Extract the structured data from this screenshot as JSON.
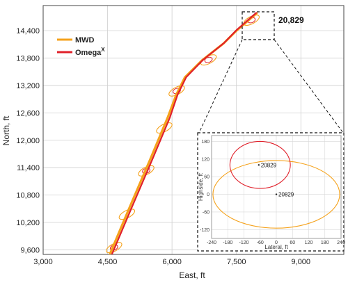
{
  "colors": {
    "mwd": "#F5A21B",
    "omega": "#E0202A",
    "grid": "#cfcfcf",
    "inset_grid": "#d8d8d8"
  },
  "chart_data": [
    {
      "type": "line",
      "title": "",
      "xlabel": "East, ft",
      "ylabel": "North, ft",
      "xlim": [
        3000,
        10000
      ],
      "ylim": [
        9500,
        14950
      ],
      "x_ticks": [
        "3,000",
        "4,500",
        "6,000",
        "7,500",
        "9,000"
      ],
      "x_tick_values": [
        3000,
        4500,
        6000,
        7500,
        9000
      ],
      "y_ticks": [
        "9,600",
        "10,200",
        "10,800",
        "11,400",
        "12,000",
        "12,600",
        "13,200",
        "13,800",
        "14,400"
      ],
      "y_tick_values": [
        9600,
        10200,
        10800,
        11400,
        12000,
        12600,
        13200,
        13800,
        14400
      ],
      "grid": true,
      "legend": "top-left",
      "series": [
        {
          "name": "MWD",
          "color": "#F5A21B",
          "x": [
            4550,
            5000,
            5500,
            5900,
            6100,
            6300,
            6700,
            7200,
            7500,
            7970
          ],
          "y": [
            9500,
            10500,
            11600,
            12500,
            13000,
            13380,
            13750,
            14120,
            14400,
            14780
          ]
        },
        {
          "name": "Omega",
          "name_superscript": "X",
          "color": "#E0202A",
          "x": [
            4600,
            5050,
            5550,
            5950,
            6130,
            6330,
            6720,
            7210,
            7510,
            7960
          ],
          "y": [
            9500,
            10500,
            11600,
            12500,
            13000,
            13380,
            13760,
            14130,
            14420,
            14790
          ]
        }
      ],
      "uncertainty_ellipses": [
        {
          "series": "MWD",
          "x": 4650,
          "y": 9650,
          "rx": 200,
          "ry": 80,
          "angle_deg": 28
        },
        {
          "series": "MWD",
          "x": 4950,
          "y": 10380,
          "rx": 200,
          "ry": 80,
          "angle_deg": 28
        },
        {
          "series": "MWD",
          "x": 5400,
          "y": 11330,
          "rx": 200,
          "ry": 80,
          "angle_deg": 28
        },
        {
          "series": "MWD",
          "x": 5820,
          "y": 12270,
          "rx": 200,
          "ry": 80,
          "angle_deg": 28
        },
        {
          "series": "MWD",
          "x": 6110,
          "y": 13080,
          "rx": 200,
          "ry": 80,
          "angle_deg": 28
        },
        {
          "series": "MWD",
          "x": 6850,
          "y": 13760,
          "rx": 200,
          "ry": 80,
          "angle_deg": 28
        },
        {
          "series": "MWD",
          "x": 7850,
          "y": 14630,
          "rx": 200,
          "ry": 80,
          "angle_deg": 28
        },
        {
          "series": "Omega",
          "x": 4650,
          "y": 9650,
          "rx": 90,
          "ry": 55,
          "angle_deg": 20
        },
        {
          "series": "Omega",
          "x": 5400,
          "y": 11330,
          "rx": 90,
          "ry": 55,
          "angle_deg": 20
        },
        {
          "series": "Omega",
          "x": 6110,
          "y": 13080,
          "rx": 90,
          "ry": 55,
          "angle_deg": 20
        },
        {
          "series": "Omega",
          "x": 6850,
          "y": 13760,
          "rx": 90,
          "ry": 55,
          "angle_deg": 20
        },
        {
          "series": "Omega",
          "x": 7850,
          "y": 14630,
          "rx": 90,
          "ry": 55,
          "angle_deg": 20
        }
      ],
      "annotations": [
        {
          "text": "20,829",
          "x": 7970,
          "y": 14780
        }
      ]
    },
    {
      "type": "scatter",
      "title": "",
      "xlabel": "Lateral, ft",
      "ylabel": "Highside, ft",
      "xlim": [
        -240,
        240
      ],
      "ylim": [
        -150,
        200
      ],
      "x_ticks": [
        "-240",
        "-180",
        "-120",
        "-60",
        "0",
        "60",
        "120",
        "180",
        "240"
      ],
      "x_tick_values": [
        -240,
        -180,
        -120,
        -60,
        0,
        60,
        120,
        180,
        240
      ],
      "y_ticks": [
        "180",
        "120",
        "60",
        "0",
        "-60",
        "-120"
      ],
      "y_tick_values": [
        180,
        120,
        60,
        0,
        -60,
        -120
      ],
      "grid": true,
      "ellipses": [
        {
          "series": "MWD",
          "cx": 0,
          "cy": 0,
          "rx": 235,
          "ry": 115
        },
        {
          "series": "Omega",
          "cx": -60,
          "cy": 100,
          "rx": 112,
          "ry": 80
        }
      ],
      "points": [
        {
          "series": "Omega",
          "x": -65,
          "y": 100,
          "label": "20829"
        },
        {
          "series": "MWD",
          "x": 0,
          "y": 0,
          "label": "20829"
        }
      ]
    }
  ]
}
